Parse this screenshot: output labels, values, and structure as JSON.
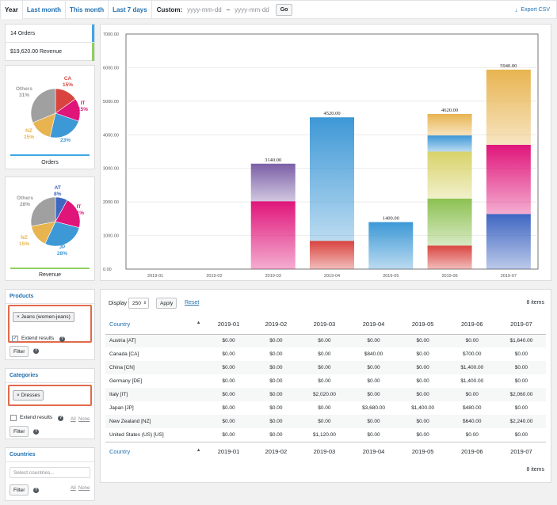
{
  "tabs": [
    {
      "label": "Year",
      "active": true
    },
    {
      "label": "Last month"
    },
    {
      "label": "This month"
    },
    {
      "label": "Last 7 days"
    }
  ],
  "custom": {
    "label": "Custom:",
    "from_placeholder": "yyyy-mm-dd",
    "separator": "–",
    "to_placeholder": "yyyy-mm-dd",
    "go": "Go"
  },
  "export_label": "Export CSV",
  "summary": {
    "orders": "14 Orders",
    "revenue": "$19,620.00 Revenue",
    "orders_color": "#3498db",
    "revenue_color": "#8fcf5f"
  },
  "pie_orders": {
    "caption": "Orders",
    "slices": [
      {
        "label": "CA",
        "pct": "15%",
        "value": 15,
        "color": "#d9443f"
      },
      {
        "label": "IT",
        "pct": "15%",
        "value": 15,
        "color": "#e0157a"
      },
      {
        "label": "JP",
        "pct": "23%",
        "value": 23,
        "color": "#3d98d6"
      },
      {
        "label": "NZ",
        "pct": "15%",
        "value": 15,
        "color": "#e8b450"
      },
      {
        "label": "Others",
        "pct": "31%",
        "value": 31,
        "color": "#a0a0a0"
      }
    ]
  },
  "pie_revenue": {
    "caption": "Revenue",
    "slices": [
      {
        "label": "AT",
        "pct": "8%",
        "value": 8,
        "color": "#3f66c2"
      },
      {
        "label": "IT",
        "pct": "21%",
        "value": 21,
        "color": "#e0157a"
      },
      {
        "label": "JP",
        "pct": "28%",
        "value": 28,
        "color": "#3d98d6"
      },
      {
        "label": "NZ",
        "pct": "15%",
        "value": 15,
        "color": "#e8b450"
      },
      {
        "label": "Others",
        "pct": "28%",
        "value": 28,
        "color": "#a0a0a0"
      }
    ]
  },
  "chart_data": {
    "type": "bar",
    "stacked": true,
    "categories": [
      "2019-01",
      "2019-02",
      "2019-03",
      "2019-04",
      "2019-05",
      "2019-06",
      "2019-07"
    ],
    "totals": [
      null,
      null,
      "3140.00",
      "4520.00",
      "1400.00",
      "4620.00",
      "5940.00"
    ],
    "ylim": [
      0,
      7000
    ],
    "yticks": [
      "0.00",
      "1000.00",
      "2000.00",
      "3000.00",
      "4000.00",
      "5000.00",
      "6000.00",
      "7000.00"
    ],
    "grid": true,
    "series": [
      {
        "color": "#3f66c2",
        "values": [
          0,
          0,
          0,
          0,
          0,
          0,
          1640
        ]
      },
      {
        "color": "#d9443f",
        "values": [
          0,
          0,
          0,
          840,
          0,
          700,
          0
        ]
      },
      {
        "color": "#8cc152",
        "values": [
          0,
          0,
          0,
          0,
          0,
          1400,
          0
        ]
      },
      {
        "color": "#d8d36a",
        "values": [
          0,
          0,
          0,
          0,
          0,
          1400,
          0
        ]
      },
      {
        "color": "#e0157a",
        "values": [
          0,
          0,
          2020,
          0,
          0,
          0,
          2060
        ]
      },
      {
        "color": "#3d98d6",
        "values": [
          0,
          0,
          0,
          3680,
          1400,
          480,
          0
        ]
      },
      {
        "color": "#e8b450",
        "values": [
          0,
          0,
          0,
          0,
          0,
          640,
          2240
        ]
      },
      {
        "color": "#7b5fa6",
        "values": [
          0,
          0,
          1120,
          0,
          0,
          0,
          0
        ]
      }
    ]
  },
  "filters": {
    "products": {
      "title": "Products",
      "chip": "× Jeans (women-jeans)",
      "extend": "Extend results",
      "filter": "Filter"
    },
    "categories": {
      "title": "Categories",
      "chip": "× Dresses",
      "extend": "Extend results",
      "all": "All",
      "none": "None",
      "filter": "Filter"
    },
    "countries": {
      "title": "Countries",
      "placeholder": "Select countries...",
      "filter": "Filter",
      "all": "All",
      "none": "None"
    }
  },
  "table": {
    "display_label": "Display",
    "display_value": "250",
    "apply": "Apply",
    "reset": "Reset",
    "items": "8 items",
    "columns": [
      "Country",
      "2019-01",
      "2019-02",
      "2019-03",
      "2019-04",
      "2019-05",
      "2019-06",
      "2019-07"
    ],
    "rows": [
      [
        "Austria [AT]",
        "$0.00",
        "$0.00",
        "$0.00",
        "$0.00",
        "$0.00",
        "$0.00",
        "$1,640.00"
      ],
      [
        "Canada [CA]",
        "$0.00",
        "$0.00",
        "$0.00",
        "$840.00",
        "$0.00",
        "$700.00",
        "$0.00"
      ],
      [
        "China [CN]",
        "$0.00",
        "$0.00",
        "$0.00",
        "$0.00",
        "$0.00",
        "$1,400.00",
        "$0.00"
      ],
      [
        "Germany [DE]",
        "$0.00",
        "$0.00",
        "$0.00",
        "$0.00",
        "$0.00",
        "$1,400.00",
        "$0.00"
      ],
      [
        "Italy [IT]",
        "$0.00",
        "$0.00",
        "$2,020.00",
        "$0.00",
        "$0.00",
        "$0.00",
        "$2,060.00"
      ],
      [
        "Japan [JP]",
        "$0.00",
        "$0.00",
        "$0.00",
        "$3,680.00",
        "$1,400.00",
        "$480.00",
        "$0.00"
      ],
      [
        "New Zealand [NZ]",
        "$0.00",
        "$0.00",
        "$0.00",
        "$0.00",
        "$0.00",
        "$640.00",
        "$2,240.00"
      ],
      [
        "United States (US) [US]",
        "$0.00",
        "$0.00",
        "$1,120.00",
        "$0.00",
        "$0.00",
        "$0.00",
        "$0.00"
      ]
    ]
  }
}
